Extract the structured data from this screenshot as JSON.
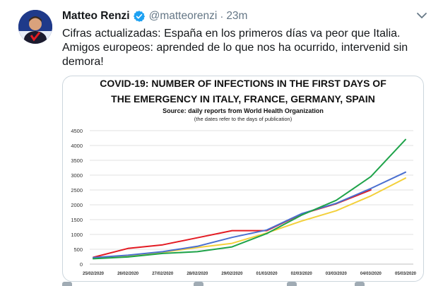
{
  "tweet": {
    "author_name": "Matteo Renzi",
    "handle": "@matteorenzi",
    "separator": "·",
    "time": "23m",
    "text_line1": "Cifras actualizadas: España en los primeros días va peor que Italia.",
    "text_line2": "Amigos europeos: aprended de lo que nos ha ocurrido, intervenid sin",
    "text_line3": "demora!"
  },
  "colors": {
    "italy": "#e31b23",
    "france": "#f3d03b",
    "germany": "#4a6fd0",
    "spain": "#1fa34a",
    "verified": "#1da1f2"
  },
  "chart_data": {
    "type": "line",
    "title_line1": "COVID-19: NUMBER OF INFECTIONS IN THE FIRST DAYS OF",
    "title_line2": "THE EMERGENCY IN ITALY, FRANCE, GERMANY, SPAIN",
    "subtitle": "Source: daily reports from World Health Organization",
    "note": "(the dates refer to the days of publication)",
    "categories": [
      "25/02/2020",
      "26/02/2020",
      "27/02/2020",
      "28/02/2020",
      "29/02/2020",
      "01/03/2020",
      "02/03/2020",
      "03/03/2020",
      "04/03/2020",
      "05/03/2020"
    ],
    "yticks": [
      0,
      500,
      1000,
      1500,
      2000,
      2500,
      3000,
      3500,
      4000,
      4500
    ],
    "ylim": [
      0,
      4500
    ],
    "series": [
      {
        "name": "Italy",
        "color_key": "italy",
        "values": [
          229,
          528,
          650,
          888,
          1128,
          1128,
          1689,
          2036,
          2502,
          null
        ]
      },
      {
        "name": "France",
        "color_key": "france",
        "values": [
          200,
          280,
          400,
          560,
          700,
          1050,
          1450,
          1800,
          2300,
          2900
        ]
      },
      {
        "name": "Germany",
        "color_key": "germany",
        "values": [
          220,
          300,
          420,
          600,
          900,
          1150,
          1700,
          2050,
          2550,
          3100
        ]
      },
      {
        "name": "Spain",
        "color_key": "spain",
        "values": [
          180,
          240,
          360,
          420,
          580,
          1030,
          1650,
          2150,
          2950,
          4200
        ]
      }
    ]
  }
}
